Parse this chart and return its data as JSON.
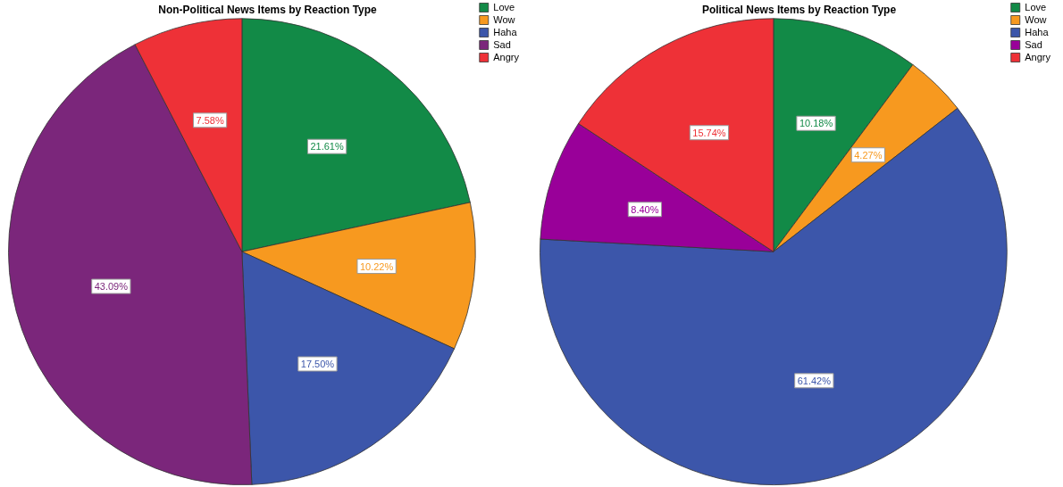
{
  "chart_data": [
    {
      "type": "pie",
      "title": "Non-Political News Items by Reaction Type",
      "categories": [
        "Love",
        "Wow",
        "Haha",
        "Sad",
        "Angry"
      ],
      "values": [
        21.61,
        10.22,
        17.5,
        43.09,
        7.58
      ],
      "colors": [
        "#128a47",
        "#f7991f",
        "#3c56aa",
        "#7b267b",
        "#ee3137"
      ],
      "value_labels": [
        "21.61%",
        "10.22%",
        "17.50%",
        "43.09%",
        "7.58%"
      ],
      "legend": "top right"
    },
    {
      "type": "pie",
      "title": "Political News Items by Reaction Type",
      "categories": [
        "Love",
        "Wow",
        "Haha",
        "Sad",
        "Angry"
      ],
      "values": [
        10.18,
        4.27,
        61.42,
        8.4,
        15.74
      ],
      "colors": [
        "#128a47",
        "#f7991f",
        "#3c56aa",
        "#990099",
        "#ee3137"
      ],
      "value_labels": [
        "10.18%",
        "4.27%",
        "61.42%",
        "8.40%",
        "15.74%"
      ],
      "legend": "top right"
    }
  ]
}
